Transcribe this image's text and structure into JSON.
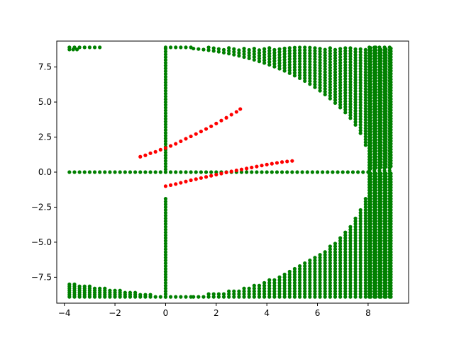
{
  "chart_data": {
    "type": "scatter",
    "title": "",
    "xlabel": "",
    "ylabel": "",
    "xlim": [
      -4.3,
      9.6
    ],
    "ylim": [
      -9.35,
      9.35
    ],
    "xticks": [
      -4,
      -2,
      0,
      2,
      4,
      6,
      8
    ],
    "xtick_labels": [
      "−4",
      "−2",
      "0",
      "2",
      "4",
      "6",
      "8"
    ],
    "yticks": [
      -7.5,
      -5.0,
      -2.5,
      0.0,
      2.5,
      5.0,
      7.5
    ],
    "ytick_labels": [
      "−7.5",
      "−5.0",
      "−2.5",
      "0.0",
      "2.5",
      "5.0",
      "7.5"
    ],
    "grid": false,
    "colors": {
      "green": "#008000",
      "red": "#ff0000"
    },
    "series": [
      {
        "color": "green",
        "description": "dense green dot field",
        "segments": [
          {
            "kind": "hline",
            "y": 0.0,
            "x_from": -3.8,
            "x_to": 8.05,
            "step": 0.2
          },
          {
            "kind": "vline",
            "x": 0.0,
            "y_from": 0.0,
            "y_to": 8.9,
            "step": 0.2
          },
          {
            "kind": "vline",
            "x": 0.0,
            "y_from": -8.9,
            "y_to": -1.8,
            "step": 0.2
          },
          {
            "kind": "hline",
            "y": 8.9,
            "x_from": -3.8,
            "x_to": -3.4,
            "step": 0.2
          },
          {
            "kind": "hline",
            "y": 8.9,
            "x_from": -3.2,
            "x_to": -2.6,
            "step": 0.2
          },
          {
            "kind": "hline",
            "y": 8.75,
            "x_from": -3.8,
            "x_to": -3.5,
            "step": 0.15
          },
          {
            "kind": "hline",
            "y": 8.9,
            "x_from": 0.0,
            "x_to": 1.0,
            "step": 0.2
          },
          {
            "kind": "hline",
            "y": -8.9,
            "x_from": 0.0,
            "x_to": 1.0,
            "step": 0.2
          },
          {
            "kind": "lower_left_block",
            "x_from": -3.8,
            "x_to": -0.2,
            "step": 0.2,
            "y_bottom": -8.9
          }
        ],
        "upper_region": {
          "x_from": 1.1,
          "x_to": 9.0,
          "step": 0.2,
          "y_top": 8.9,
          "ellipse_a": 8.05,
          "ellipse_b": 8.9,
          "y_step": 0.2
        },
        "lower_region": {
          "x_from": 1.1,
          "x_to": 9.0,
          "step": 0.2,
          "y_bottom": -8.9,
          "ellipse_a": 8.05,
          "ellipse_b": 8.9,
          "y_step": 0.2
        },
        "right_column": {
          "x_from": 8.05,
          "x_to": 9.0,
          "step": 0.2,
          "y_from": -8.9,
          "y_to": 8.9,
          "y_step": 0.2
        }
      },
      {
        "color": "red",
        "description": "upper red curve",
        "x": [
          -1.0,
          -0.8,
          -0.6,
          -0.4,
          -0.2,
          0.0,
          0.2,
          0.4,
          0.6,
          0.8,
          1.0,
          1.2,
          1.4,
          1.6,
          1.8,
          2.0,
          2.2,
          2.4,
          2.6,
          2.8,
          2.95
        ],
        "y": [
          1.1,
          1.2,
          1.35,
          1.45,
          1.6,
          1.72,
          1.87,
          2.02,
          2.2,
          2.38,
          2.55,
          2.72,
          2.9,
          3.08,
          3.27,
          3.47,
          3.68,
          3.88,
          4.1,
          4.3,
          4.5
        ]
      },
      {
        "color": "red",
        "description": "lower red curve",
        "x": [
          0.0,
          0.2,
          0.4,
          0.6,
          0.8,
          1.0,
          1.2,
          1.4,
          1.6,
          1.8,
          2.0,
          2.2,
          2.4,
          2.6,
          2.8,
          3.0,
          3.2,
          3.4,
          3.6,
          3.8,
          4.0,
          4.2,
          4.4,
          4.6,
          4.8,
          5.0
        ],
        "y": [
          -1.0,
          -0.93,
          -0.85,
          -0.76,
          -0.67,
          -0.58,
          -0.5,
          -0.42,
          -0.34,
          -0.26,
          -0.18,
          -0.1,
          -0.02,
          0.05,
          0.12,
          0.19,
          0.26,
          0.33,
          0.4,
          0.47,
          0.54,
          0.6,
          0.66,
          0.72,
          0.76,
          0.8
        ]
      }
    ]
  }
}
